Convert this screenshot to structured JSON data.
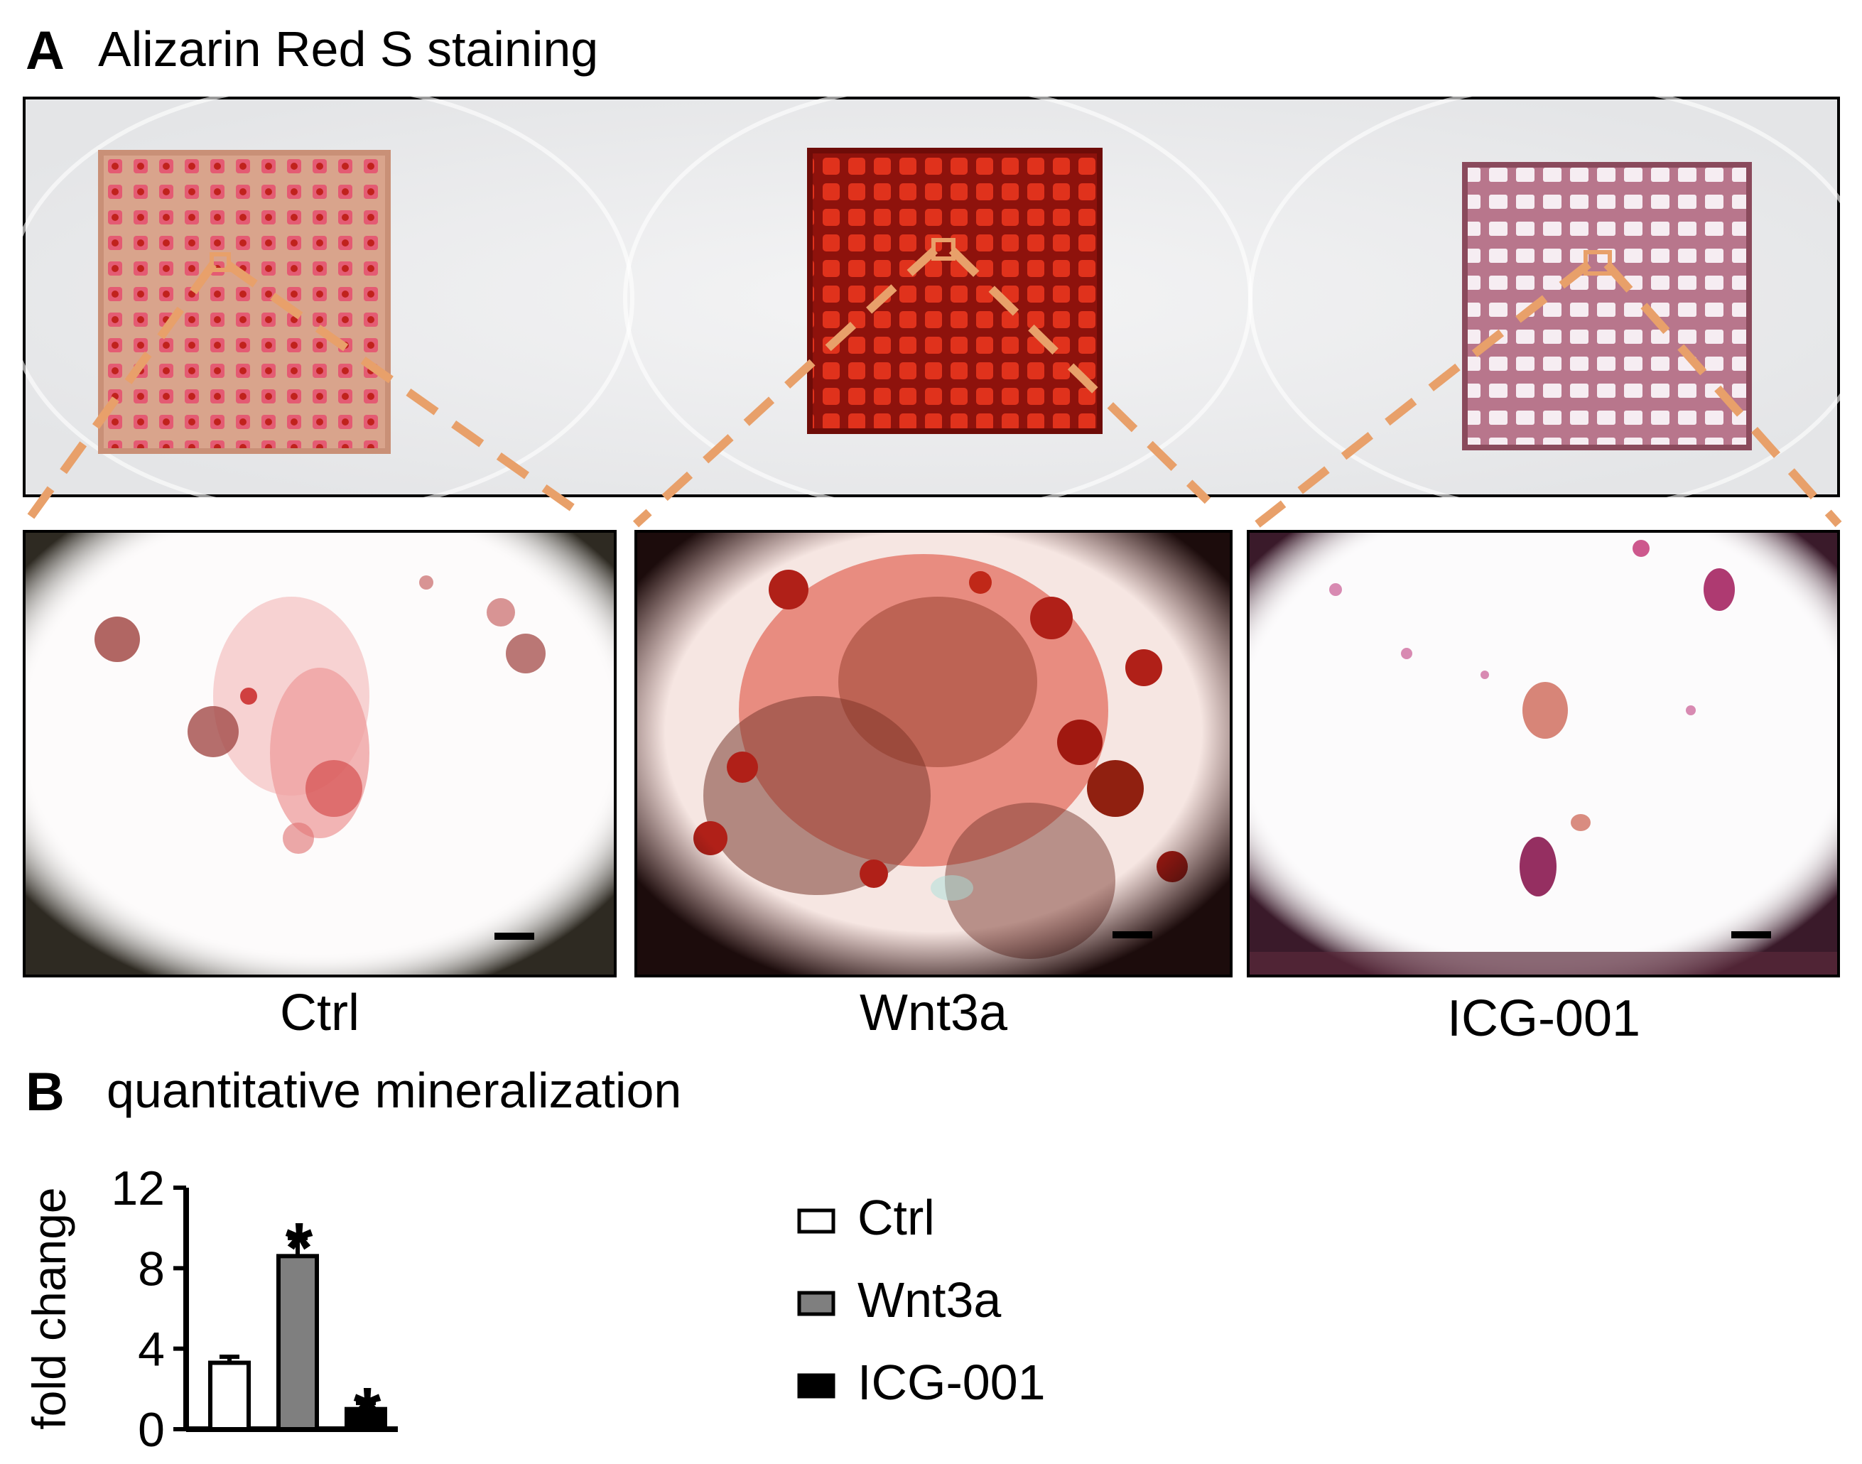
{
  "panel_a": {
    "letter": "A",
    "title": "Alizarin Red S staining",
    "groups": [
      "Ctrl",
      "Wnt3a",
      "ICG-001"
    ]
  },
  "panel_b": {
    "letter": "B",
    "title": "quantitative mineralization"
  },
  "colors": {
    "zoom_line": "#E8A06A",
    "ctrl_scaffold": "#D9A48C",
    "wnt3a_scaffold": "#A8160E",
    "icg_scaffold": "#C98A9E",
    "bar_ctrl": "#FFFFFF",
    "bar_wnt3a": "#7F7F7F",
    "bar_icg": "#000000"
  },
  "chart_data": {
    "type": "bar",
    "categories": [
      "Ctrl",
      "Wnt3a",
      "ICG-001"
    ],
    "values": [
      3.3,
      8.6,
      1.0
    ],
    "errors": [
      0.3,
      0.9,
      0.3
    ],
    "significance": [
      "",
      "*",
      "*"
    ],
    "ylabel": "fold change",
    "ylim": [
      0,
      12
    ],
    "yticks": [
      "0",
      "4",
      "8",
      "12"
    ],
    "legend": [
      "Ctrl",
      "Wnt3a",
      "ICG-001"
    ],
    "legend_position": "right",
    "grid": false
  }
}
